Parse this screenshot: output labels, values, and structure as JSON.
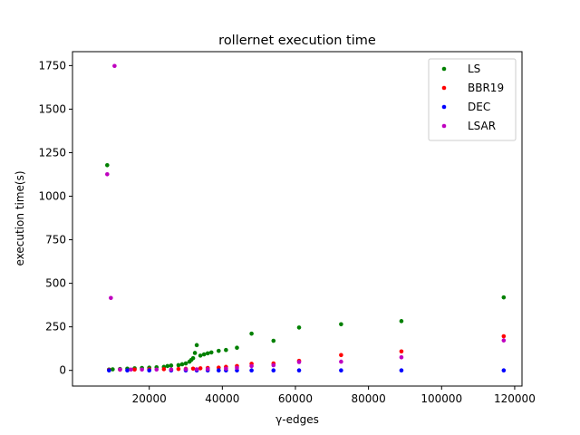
{
  "chart_data": {
    "type": "scatter",
    "title": "rollernet execution time",
    "xlabel": "γ-edges",
    "ylabel": "execution time(s)",
    "xlim": [
      -1000,
      122000
    ],
    "ylim": [
      -90,
      1830
    ],
    "xticks": [
      20000,
      40000,
      60000,
      80000,
      100000,
      120000
    ],
    "yticks": [
      0,
      250,
      500,
      750,
      1000,
      1250,
      1500,
      1750
    ],
    "grid": false,
    "legend_position": "top-right",
    "series": [
      {
        "name": "LS",
        "color": "#008000",
        "points": [
          [
            8500,
            1178
          ],
          [
            9000,
            5
          ],
          [
            10000,
            6
          ],
          [
            12000,
            8
          ],
          [
            14000,
            10
          ],
          [
            16000,
            12
          ],
          [
            18000,
            14
          ],
          [
            20000,
            16
          ],
          [
            22000,
            18
          ],
          [
            24000,
            20
          ],
          [
            25000,
            25
          ],
          [
            26000,
            28
          ],
          [
            28000,
            30
          ],
          [
            29000,
            35
          ],
          [
            30000,
            40
          ],
          [
            31000,
            50
          ],
          [
            31500,
            60
          ],
          [
            32000,
            70
          ],
          [
            32500,
            100
          ],
          [
            33000,
            145
          ],
          [
            34000,
            85
          ],
          [
            35000,
            92
          ],
          [
            36000,
            98
          ],
          [
            37000,
            103
          ],
          [
            39000,
            112
          ],
          [
            41000,
            117
          ],
          [
            44000,
            130
          ],
          [
            48000,
            211
          ],
          [
            54000,
            170
          ],
          [
            61000,
            246
          ],
          [
            72500,
            265
          ],
          [
            89000,
            283
          ],
          [
            117000,
            419
          ]
        ]
      },
      {
        "name": "BBR19",
        "color": "#ff0000",
        "points": [
          [
            9000,
            3
          ],
          [
            12000,
            4
          ],
          [
            16000,
            5
          ],
          [
            20000,
            6
          ],
          [
            24000,
            7
          ],
          [
            28000,
            8
          ],
          [
            30000,
            9
          ],
          [
            32000,
            10
          ],
          [
            34000,
            12
          ],
          [
            36000,
            14
          ],
          [
            39000,
            16
          ],
          [
            41000,
            20
          ],
          [
            44000,
            25
          ],
          [
            48000,
            38
          ],
          [
            54000,
            40
          ],
          [
            61000,
            55
          ],
          [
            72500,
            88
          ],
          [
            89000,
            109
          ],
          [
            117000,
            196
          ]
        ]
      },
      {
        "name": "DEC",
        "color": "#0000ff",
        "points": [
          [
            9000,
            0
          ],
          [
            14000,
            0
          ],
          [
            20000,
            0
          ],
          [
            26000,
            0
          ],
          [
            30000,
            0
          ],
          [
            33000,
            0
          ],
          [
            36000,
            0
          ],
          [
            39000,
            0
          ],
          [
            41000,
            0
          ],
          [
            44000,
            0
          ],
          [
            48000,
            0
          ],
          [
            54000,
            0
          ],
          [
            61000,
            0
          ],
          [
            72500,
            0
          ],
          [
            89000,
            0
          ],
          [
            117000,
            0
          ]
        ]
      },
      {
        "name": "LSAR",
        "color": "#bf00bf",
        "points": [
          [
            8500,
            1126
          ],
          [
            9500,
            416
          ],
          [
            10500,
            1748
          ],
          [
            12000,
            5
          ],
          [
            15000,
            5
          ],
          [
            18000,
            5
          ],
          [
            22000,
            5
          ],
          [
            26000,
            5
          ],
          [
            30000,
            6
          ],
          [
            33000,
            6
          ],
          [
            36000,
            7
          ],
          [
            41000,
            10
          ],
          [
            44000,
            15
          ],
          [
            48000,
            25
          ],
          [
            54000,
            30
          ],
          [
            61000,
            48
          ],
          [
            72500,
            50
          ],
          [
            89000,
            75
          ],
          [
            117000,
            172
          ]
        ]
      }
    ]
  }
}
